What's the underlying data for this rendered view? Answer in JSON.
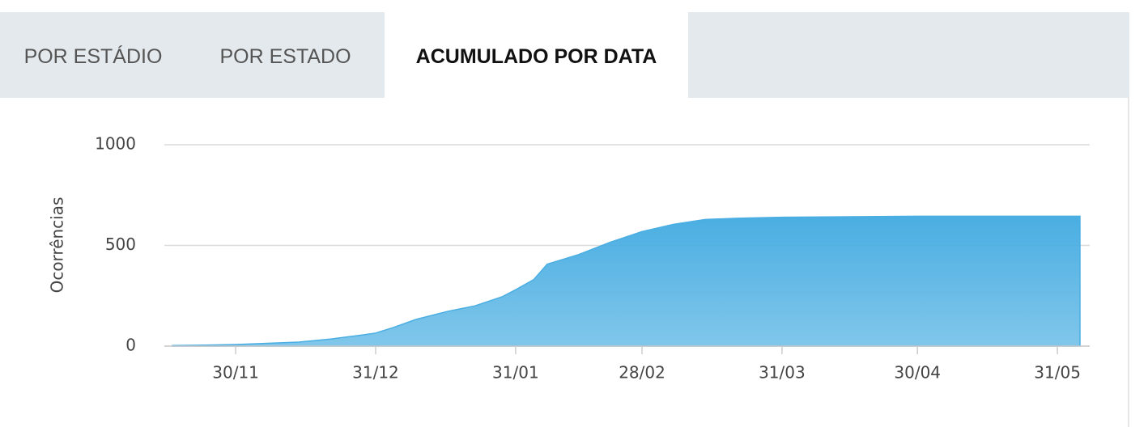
{
  "tabs": [
    "POR ESTÁDIO",
    "POR ESTADO",
    "ACUMULADO POR DATA"
  ],
  "chart_data": {
    "type": "area",
    "y_label": "Ocorrências",
    "color": "#4aaee2",
    "x": [
      "16/11",
      "23/11",
      "30/11",
      "07/12",
      "14/12",
      "21/12",
      "28/12",
      "31/12",
      "04/01",
      "09/01",
      "16/01",
      "22/01",
      "28/01",
      "31/01",
      "04/02",
      "07/02",
      "14/02",
      "21/02",
      "28/02",
      "07/03",
      "14/03",
      "21/03",
      "31/03",
      "30/04",
      "31/05",
      "05/06"
    ],
    "values": [
      3,
      5,
      8,
      14,
      20,
      35,
      55,
      65,
      93,
      133,
      173,
      200,
      245,
      280,
      330,
      407,
      455,
      516,
      569,
      605,
      629,
      635,
      640,
      645,
      645,
      645
    ],
    "xlim": [
      "16/11",
      "05/06"
    ],
    "xticks": [
      "30/11",
      "31/12",
      "31/01",
      "28/02",
      "31/03",
      "30/04",
      "31/05"
    ],
    "ylim": [
      0,
      1000
    ],
    "yticks": [
      0,
      500,
      1000
    ],
    "grid": true
  }
}
